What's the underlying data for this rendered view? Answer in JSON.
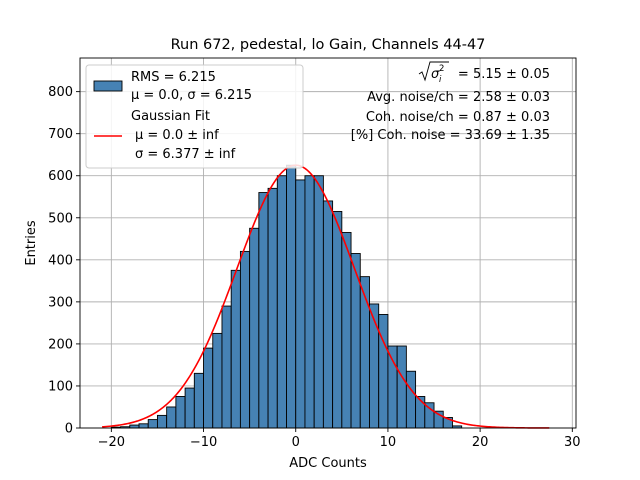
{
  "chart_data": {
    "type": "bar",
    "title": "Run 672, pedestal, lo Gain, Channels 44-47",
    "xlabel": "ADC Counts",
    "ylabel": "Entries",
    "xlim": [
      -23.4,
      30.4
    ],
    "ylim": [
      0,
      880
    ],
    "xticks": [
      -20,
      -10,
      0,
      10,
      20,
      30
    ],
    "yticks": [
      0,
      100,
      200,
      300,
      400,
      500,
      600,
      700,
      800
    ],
    "grid": true,
    "legend_position": "top-left",
    "histogram": {
      "bin_width": 1,
      "bin_left_edges": [
        -20,
        -19,
        -18,
        -17,
        -16,
        -15,
        -14,
        -13,
        -12,
        -11,
        -10,
        -9,
        -8,
        -7,
        -6,
        -5,
        -4,
        -3,
        -2,
        -1,
        0,
        1,
        2,
        3,
        4,
        5,
        6,
        7,
        8,
        9,
        10,
        11,
        12,
        13,
        14,
        15,
        16,
        17
      ],
      "values": [
        2,
        3,
        7,
        10,
        20,
        30,
        50,
        75,
        95,
        130,
        190,
        225,
        290,
        375,
        420,
        475,
        560,
        570,
        600,
        625,
        590,
        600,
        600,
        540,
        515,
        465,
        415,
        360,
        295,
        270,
        195,
        195,
        135,
        75,
        60,
        40,
        25,
        5
      ],
      "color": "#4682b4"
    },
    "fit_curve": {
      "mean": 0.0,
      "sigma": 6.377,
      "amplitude": 625,
      "x_range": [
        -21,
        27.5
      ],
      "color": "#ff0000"
    },
    "legend": {
      "hist_line1": "RMS = 6.215",
      "hist_line2": "μ = 0.0, σ = 6.215",
      "fit_line1": "Gaussian Fit",
      "fit_line2": "μ = 0.0 ± inf",
      "fit_line3": "σ = 6.377 ± inf"
    },
    "annotations": {
      "sigma_sq_value": "= 5.15 ± 0.05",
      "avg_noise": "Avg. noise/ch = 2.58 ± 0.03",
      "coh_noise": "Coh. noise/ch = 0.87 ± 0.03",
      "pct_coh_noise": "[%] Coh. noise = 33.69 ± 1.35"
    }
  }
}
